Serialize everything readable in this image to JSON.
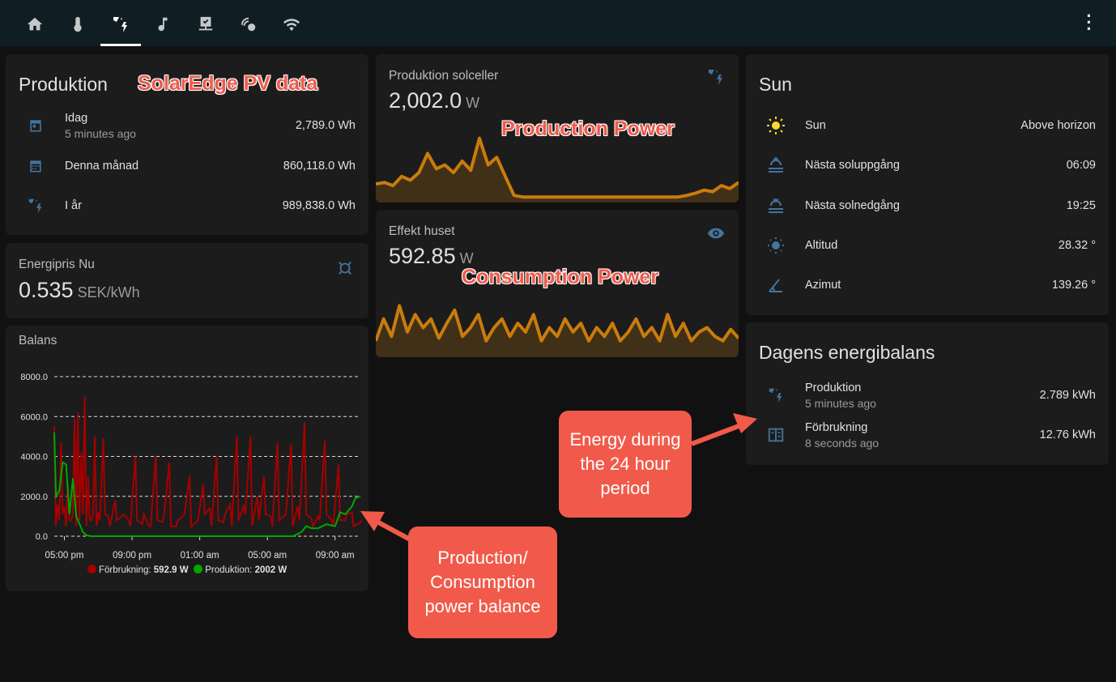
{
  "topbar": {
    "tabs": [
      "home-icon",
      "thermometer-icon",
      "solar-power-icon",
      "music-note-icon",
      "monitor-check-icon",
      "zigbee-icon",
      "wifi-icon"
    ],
    "active_tab": 2
  },
  "produktion": {
    "title": "Produktion",
    "rows": [
      {
        "label": "Idag",
        "secondary": "5 minutes ago",
        "value": "2,789.0 Wh",
        "icon": "calendar-today-icon"
      },
      {
        "label": "Denna månad",
        "value": "860,118.0 Wh",
        "icon": "calendar-month-icon"
      },
      {
        "label": "I år",
        "value": "989,838.0 Wh",
        "icon": "solar-power-icon"
      }
    ]
  },
  "energipris": {
    "name": "Energipris Nu",
    "value": "0.535",
    "unit": "SEK/kWh"
  },
  "balans": {
    "title": "Balans"
  },
  "solceller": {
    "name": "Produktion solceller",
    "value": "2,002.0",
    "unit": "W",
    "spark": [
      20,
      22,
      18,
      30,
      25,
      35,
      60,
      40,
      45,
      35,
      50,
      38,
      80,
      45,
      55,
      30,
      5,
      3,
      3,
      3,
      3,
      3,
      3,
      3,
      3,
      3,
      3,
      3,
      3,
      3,
      3,
      3,
      3,
      3,
      3,
      3,
      5,
      8,
      12,
      10,
      18,
      14,
      22
    ]
  },
  "huset": {
    "name": "Effekt huset",
    "value": "592.85",
    "unit": "W",
    "spark": [
      15,
      40,
      20,
      55,
      25,
      45,
      30,
      40,
      18,
      35,
      50,
      20,
      30,
      45,
      15,
      30,
      40,
      20,
      35,
      25,
      45,
      15,
      30,
      20,
      40,
      25,
      35,
      15,
      30,
      20,
      35,
      15,
      25,
      40,
      20,
      30,
      15,
      45,
      20,
      35,
      15,
      25,
      30,
      20,
      15,
      28,
      18
    ]
  },
  "sun": {
    "title": "Sun",
    "rows": [
      {
        "label": "Sun",
        "value": "Above horizon",
        "icon": "sun-icon"
      },
      {
        "label": "Nästa soluppgång",
        "value": "06:09",
        "icon": "sunrise-icon"
      },
      {
        "label": "Nästa solnedgång",
        "value": "19:25",
        "icon": "sunset-icon"
      },
      {
        "label": "Altitud",
        "value": "28.32 °",
        "icon": "sun-altitude-icon"
      },
      {
        "label": "Azimut",
        "value": "139.26 °",
        "icon": "angle-icon"
      }
    ]
  },
  "energibalans": {
    "title": "Dagens energibalans",
    "rows": [
      {
        "label": "Produktion",
        "secondary": "5 minutes ago",
        "value": "2.789 kWh",
        "icon": "solar-power-icon"
      },
      {
        "label": "Förbrukning",
        "secondary": "8 seconds ago",
        "value": "12.76 kWh",
        "icon": "meter-icon"
      }
    ]
  },
  "annotations": {
    "pv": "SolarEdge PV data",
    "prod": "Production Power",
    "cons": "Consumption Power",
    "energy": "Energy during the 24 hour period",
    "balance": "Production/ Consumption power balance"
  },
  "chart_data": {
    "type": "line",
    "title": "Balans",
    "ylim": [
      0,
      8000
    ],
    "yticks": [
      "8000.0",
      "6000.0",
      "4000.0",
      "2000.0",
      "0.0"
    ],
    "xticks": [
      "05:00 pm",
      "09:00 pm",
      "01:00 am",
      "05:00 am",
      "09:00 am"
    ],
    "x_range_hours": [
      16.4,
      34.5
    ],
    "series": [
      {
        "name": "Förbrukning",
        "legend_value": "592.9 W",
        "color": "#a50000",
        "x": [
          16.4,
          16.6,
          16.8,
          17.0,
          17.2,
          17.4,
          17.6,
          17.8,
          18.0,
          18.2,
          18.4,
          18.6,
          18.8,
          19.0,
          19.3,
          19.6,
          20.0,
          20.4,
          20.8,
          21.2,
          21.6,
          22.0,
          22.4,
          22.8,
          23.2,
          23.6,
          24.0,
          24.4,
          24.8,
          25.2,
          25.6,
          26.0,
          26.4,
          26.8,
          27.2,
          27.6,
          28.0,
          28.4,
          28.8,
          29.2,
          29.6,
          30.0,
          30.4,
          30.8,
          31.2,
          31.6,
          32.0,
          32.4,
          32.8,
          33.2,
          33.6,
          34.0,
          34.5
        ],
        "y": [
          5500,
          1600,
          4700,
          1500,
          2600,
          800,
          5900,
          6200,
          4200,
          7000,
          3000,
          800,
          5000,
          1200,
          4900,
          1000,
          1800,
          1000,
          800,
          4000,
          600,
          500,
          4000,
          700,
          3700,
          500,
          1000,
          3000,
          700,
          2600,
          1400,
          4000,
          700,
          1600,
          5000,
          1500,
          5000,
          2000,
          3000,
          1000,
          4700,
          1000,
          4600,
          1500,
          5700,
          900,
          1000,
          4800,
          800,
          3600,
          800,
          1200,
          700
        ]
      },
      {
        "name": "Produktion",
        "legend_value": "2002 W",
        "color": "#00a800",
        "x": [
          16.4,
          16.5,
          16.7,
          16.9,
          17.1,
          17.3,
          17.5,
          17.7,
          17.9,
          18.1,
          18.3,
          18.6,
          19.0,
          19.5,
          20.0,
          24.0,
          28.0,
          30.5,
          31.0,
          31.3,
          31.6,
          32.0,
          32.5,
          33.0,
          33.3,
          33.6,
          34.0,
          34.2,
          34.5
        ],
        "y": [
          5200,
          2000,
          2300,
          3700,
          3600,
          1100,
          2900,
          1000,
          600,
          200,
          50,
          0,
          0,
          0,
          0,
          0,
          0,
          0,
          200,
          500,
          400,
          400,
          600,
          500,
          1200,
          1100,
          1500,
          1900,
          2000
        ]
      }
    ]
  }
}
